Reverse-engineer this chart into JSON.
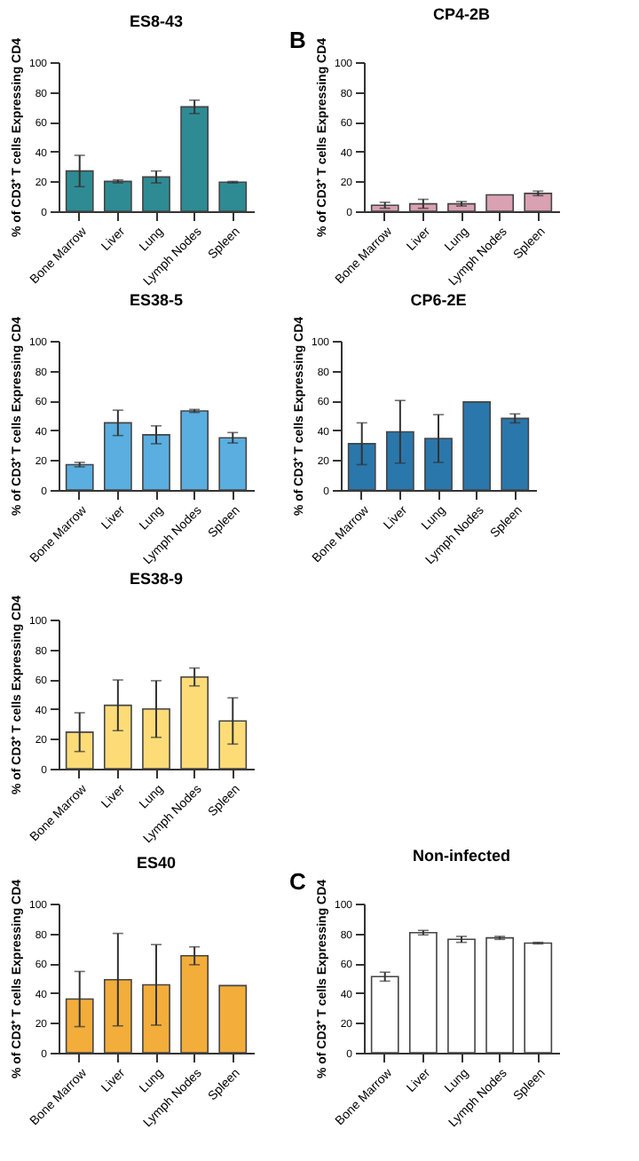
{
  "chart_data": [
    {
      "type": "bar",
      "title": "ES8-43",
      "ylabel": "% of CD3⁺ T cells Expressing CD4",
      "categories": [
        "Bone Marrow",
        "Liver",
        "Lung",
        "Lymph Nodes",
        "Spleen"
      ],
      "values": [
        27,
        20,
        23,
        70,
        19.5
      ],
      "errors": [
        10.5,
        1,
        4,
        4.5,
        0.5
      ],
      "color": "#2e8b94",
      "ylim": [
        0,
        100
      ],
      "yticks": [
        0,
        20,
        40,
        60,
        80,
        100
      ],
      "grid": false
    },
    {
      "type": "bar",
      "title": "CP4-2B",
      "annotations": [
        "B"
      ],
      "ylabel": "% of CD3⁺ T cells Expressing CD4",
      "categories": [
        "Bone Marrow",
        "Liver",
        "Lung",
        "Lymph Nodes",
        "Spleen"
      ],
      "values": [
        4,
        5,
        5,
        11,
        12
      ],
      "errors": [
        2,
        3,
        1.5,
        null,
        1.5
      ],
      "color": "#d9a1b1",
      "ylim": [
        0,
        100
      ],
      "yticks": [
        0,
        20,
        40,
        60,
        80,
        100
      ],
      "grid": false
    },
    {
      "type": "bar",
      "title": "ES38-5",
      "ylabel": "% of CD3⁺ T cells Expressing CD4",
      "categories": [
        "Bone Marrow",
        "Liver",
        "Lung",
        "Lymph Nodes",
        "Spleen"
      ],
      "values": [
        17,
        45,
        37,
        53,
        35
      ],
      "errors": [
        1.5,
        8.5,
        6,
        1,
        3.5
      ],
      "color": "#5aaee0",
      "ylim": [
        0,
        100
      ],
      "yticks": [
        0,
        20,
        40,
        60,
        80,
        100
      ],
      "grid": false
    },
    {
      "type": "bar",
      "title": "CP6-2E",
      "ylabel": "% of CD3⁺ T cells Expressing CD4",
      "categories": [
        "Bone Marrow",
        "Liver",
        "Lung",
        "Lymph Nodes",
        "Spleen"
      ],
      "values": [
        31,
        39,
        34.5,
        59,
        48
      ],
      "errors": [
        14,
        21,
        16,
        null,
        3
      ],
      "color": "#2a77ac",
      "ylim": [
        0,
        100
      ],
      "yticks": [
        0,
        20,
        40,
        60,
        80,
        100
      ],
      "grid": false
    },
    {
      "type": "bar",
      "title": "ES38-9",
      "ylabel": "% of CD3⁺ T cells Expressing CD4",
      "categories": [
        "Bone Marrow",
        "Liver",
        "Lung",
        "Lymph Nodes",
        "Spleen"
      ],
      "values": [
        24.5,
        42.5,
        40,
        61.5,
        32
      ],
      "errors": [
        13,
        17,
        19,
        6,
        15.5
      ],
      "color": "#fddc78",
      "ylim": [
        0,
        100
      ],
      "yticks": [
        0,
        20,
        40,
        60,
        80,
        100
      ],
      "grid": false
    },
    {
      "type": "bar",
      "title": "ES40",
      "ylabel": "% of CD3⁺ T cells Expressing CD4",
      "categories": [
        "Bone Marrow",
        "Liver",
        "Lung",
        "Lymph Nodes",
        "Spleen"
      ],
      "values": [
        36,
        49,
        45.5,
        65,
        45
      ],
      "errors": [
        18.5,
        31,
        27,
        6,
        null
      ],
      "color": "#f3ad3a",
      "ylim": [
        0,
        100
      ],
      "yticks": [
        0,
        20,
        40,
        60,
        80,
        100
      ],
      "grid": false
    },
    {
      "type": "bar",
      "title": "Non-infected",
      "annotations": [
        "C"
      ],
      "ylabel": "% of CD3⁺ T cells Expressing CD4",
      "categories": [
        "Bone Marrow",
        "Liver",
        "Lung",
        "Lymph Nodes",
        "Spleen"
      ],
      "values": [
        51,
        80.5,
        76,
        77,
        73.5
      ],
      "errors": [
        3,
        1.5,
        2,
        1,
        0.5
      ],
      "color": "#ffffff",
      "ylim": [
        0,
        100
      ],
      "yticks": [
        0,
        20,
        40,
        60,
        80,
        100
      ],
      "grid": false
    }
  ]
}
